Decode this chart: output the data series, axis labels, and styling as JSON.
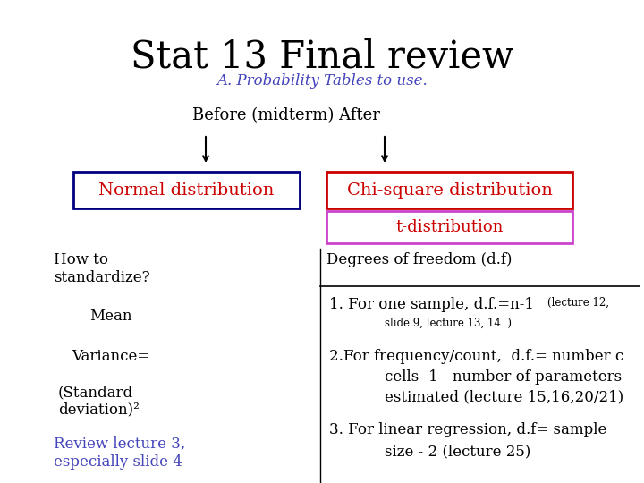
{
  "title": "Stat 13 Final review",
  "subtitle": "A. Probability Tables to use.",
  "before_after_label": "Before (midterm) After",
  "normal_box_text": "Normal distribution",
  "chi_box_text": "Chi-square distribution",
  "t_box_text": "t-distribution",
  "how_to_label": "How to\nstandardize?",
  "dof_label": "Degrees of freedom (d.f)",
  "bg_color": "#ffffff",
  "title_color": "#000000",
  "subtitle_color": "#4444bb",
  "normal_box_border": "#000080",
  "normal_box_text_color": "#cc0000",
  "chi_box_border": "#cc0000",
  "chi_box_text_color": "#cc0000",
  "t_box_border": "#cc44cc",
  "t_box_text_color": "#cc0000",
  "left_text_color": "#000000",
  "right_text_color": "#000000",
  "review_color": "#4444bb",
  "divider_color": "#000000"
}
